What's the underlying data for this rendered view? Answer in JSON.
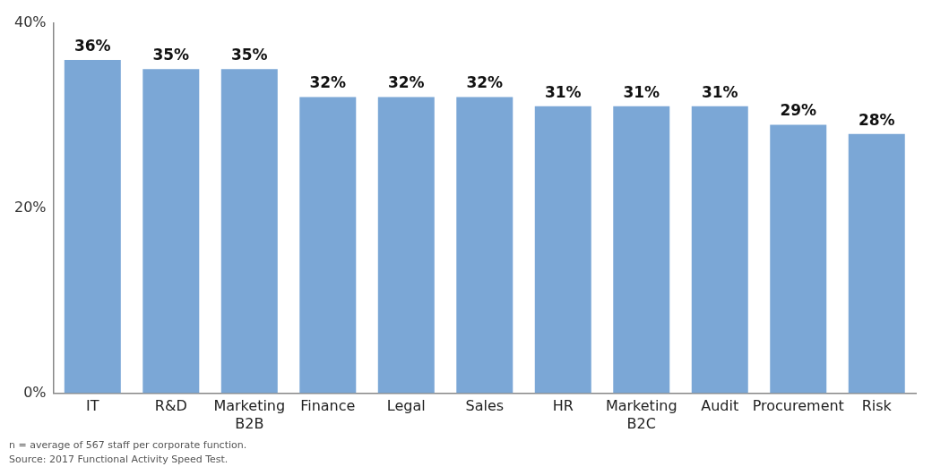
{
  "chart_data": {
    "type": "bar",
    "categories": [
      "IT",
      "R&D",
      "Marketing B2B",
      "Finance",
      "Legal",
      "Sales",
      "HR",
      "Marketing B2C",
      "Audit",
      "Procurement",
      "Risk"
    ],
    "values": [
      36,
      35,
      35,
      32,
      32,
      32,
      31,
      31,
      31,
      29,
      28
    ],
    "value_labels": [
      "36%",
      "35%",
      "35%",
      "32%",
      "32%",
      "32%",
      "31%",
      "31%",
      "31%",
      "29%",
      "28%"
    ],
    "color": "#7ba7d6",
    "ylim": [
      0,
      40
    ],
    "yticks": [
      {
        "value": 0,
        "label": "0%"
      },
      {
        "value": 20,
        "label": "20%"
      },
      {
        "value": 40,
        "label": "40%"
      }
    ],
    "grid": false,
    "legend": false,
    "annotations": [
      "n = average of 567 staff per corporate function.",
      "Source: 2017 Functional Activity Speed Test."
    ]
  }
}
